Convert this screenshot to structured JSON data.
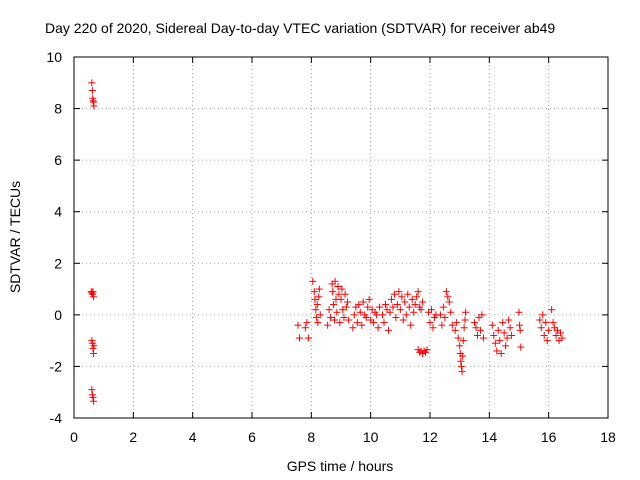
{
  "chart_data": {
    "type": "scatter",
    "title": "Day 220 of 2020, Sidereal Day-to-day VTEC variation (SDTVAR) for receiver ab49",
    "xlabel": "GPS time / hours",
    "ylabel": "SDTVAR / TECUs",
    "xlim": [
      0,
      18
    ],
    "ylim": [
      -4,
      10
    ],
    "xticks": [
      0,
      2,
      4,
      6,
      8,
      10,
      12,
      14,
      16,
      18
    ],
    "yticks": [
      -4,
      -2,
      0,
      2,
      4,
      6,
      8,
      10
    ],
    "xtick_labels": [
      "0",
      "2",
      "4",
      "6",
      "8",
      "10",
      "12",
      "14",
      "16",
      "18"
    ],
    "ytick_labels": [
      "-4",
      "-2",
      "0",
      "2",
      "4",
      "6",
      "8",
      "10"
    ],
    "grid": true,
    "marker": "+",
    "color": "#ff0000",
    "series": [
      {
        "name": "SDTVAR",
        "points": [
          [
            0.6,
            9.0
          ],
          [
            0.62,
            8.7
          ],
          [
            0.63,
            8.4
          ],
          [
            0.64,
            8.3
          ],
          [
            0.66,
            8.25
          ],
          [
            0.67,
            8.1
          ],
          [
            0.58,
            0.9
          ],
          [
            0.6,
            0.85
          ],
          [
            0.62,
            0.8
          ],
          [
            0.64,
            0.9
          ],
          [
            0.66,
            0.7
          ],
          [
            0.6,
            -1.0
          ],
          [
            0.62,
            -1.1
          ],
          [
            0.64,
            -1.3
          ],
          [
            0.66,
            -1.5
          ],
          [
            0.67,
            -1.2
          ],
          [
            0.6,
            -2.9
          ],
          [
            0.62,
            -3.1
          ],
          [
            0.64,
            -3.2
          ],
          [
            0.66,
            -3.35
          ],
          [
            7.55,
            -0.4
          ],
          [
            7.6,
            -0.9
          ],
          [
            7.8,
            -0.5
          ],
          [
            7.85,
            -0.3
          ],
          [
            7.9,
            -0.9
          ],
          [
            8.05,
            1.3
          ],
          [
            8.1,
            0.9
          ],
          [
            8.12,
            0.6
          ],
          [
            8.15,
            0.2
          ],
          [
            8.17,
            -0.1
          ],
          [
            8.2,
            0.4
          ],
          [
            8.22,
            -0.3
          ],
          [
            8.25,
            0.7
          ],
          [
            8.27,
            1.0
          ],
          [
            8.3,
            0.0
          ],
          [
            8.55,
            -0.4
          ],
          [
            8.6,
            0.2
          ],
          [
            8.65,
            -0.1
          ],
          [
            8.7,
            1.2
          ],
          [
            8.72,
            0.9
          ],
          [
            8.75,
            0.4
          ],
          [
            8.78,
            -0.2
          ],
          [
            8.8,
            1.3
          ],
          [
            8.83,
            0.6
          ],
          [
            8.86,
            0.1
          ],
          [
            8.9,
            1.1
          ],
          [
            8.93,
            0.8
          ],
          [
            8.96,
            -0.3
          ],
          [
            9.0,
            0.6
          ],
          [
            9.03,
            1.0
          ],
          [
            9.06,
            0.2
          ],
          [
            9.1,
            -0.1
          ],
          [
            9.14,
            0.8
          ],
          [
            9.18,
            0.3
          ],
          [
            9.22,
            0.5
          ],
          [
            9.26,
            -0.2
          ],
          [
            9.4,
            -0.5
          ],
          [
            9.45,
            0.0
          ],
          [
            9.5,
            0.3
          ],
          [
            9.55,
            -0.3
          ],
          [
            9.6,
            0.4
          ],
          [
            9.65,
            0.1
          ],
          [
            9.7,
            -0.4
          ],
          [
            9.75,
            0.5
          ],
          [
            9.8,
            0.0
          ],
          [
            9.85,
            -0.1
          ],
          [
            9.9,
            0.3
          ],
          [
            9.95,
            0.6
          ],
          [
            10.0,
            -0.2
          ],
          [
            10.05,
            0.2
          ],
          [
            10.1,
            -0.3
          ],
          [
            10.15,
            0.1
          ],
          [
            10.2,
            0.0
          ],
          [
            10.25,
            -0.5
          ],
          [
            10.3,
            0.3
          ],
          [
            10.4,
            0.0
          ],
          [
            10.45,
            -0.3
          ],
          [
            10.5,
            0.4
          ],
          [
            10.55,
            0.2
          ],
          [
            10.6,
            -0.6
          ],
          [
            10.65,
            0.1
          ],
          [
            10.7,
            0.6
          ],
          [
            10.75,
            0.3
          ],
          [
            10.8,
            0.8
          ],
          [
            10.85,
            -0.1
          ],
          [
            10.9,
            0.4
          ],
          [
            10.95,
            0.9
          ],
          [
            11.0,
            0.2
          ],
          [
            11.05,
            0.7
          ],
          [
            11.1,
            -0.2
          ],
          [
            11.15,
            0.5
          ],
          [
            11.2,
            0.0
          ],
          [
            11.25,
            0.8
          ],
          [
            11.3,
            0.3
          ],
          [
            11.35,
            -0.4
          ],
          [
            11.4,
            0.6
          ],
          [
            11.45,
            0.1
          ],
          [
            11.5,
            0.4
          ],
          [
            11.55,
            0.7
          ],
          [
            11.6,
            0.9
          ],
          [
            11.65,
            0.3
          ],
          [
            11.7,
            0.2
          ],
          [
            11.75,
            0.5
          ],
          [
            11.6,
            -1.35
          ],
          [
            11.65,
            -1.45
          ],
          [
            11.7,
            -1.4
          ],
          [
            11.75,
            -1.5
          ],
          [
            11.8,
            -1.4
          ],
          [
            11.85,
            -1.45
          ],
          [
            11.9,
            -1.35
          ],
          [
            11.95,
            0.1
          ],
          [
            12.0,
            -0.3
          ],
          [
            12.05,
            0.2
          ],
          [
            12.1,
            -0.5
          ],
          [
            12.15,
            -0.1
          ],
          [
            12.2,
            0.0
          ],
          [
            12.35,
            0.0
          ],
          [
            12.4,
            -0.4
          ],
          [
            12.45,
            0.3
          ],
          [
            12.5,
            -0.1
          ],
          [
            12.55,
            0.9
          ],
          [
            12.6,
            0.7
          ],
          [
            12.65,
            0.5
          ],
          [
            12.7,
            0.1
          ],
          [
            12.75,
            -0.4
          ],
          [
            12.85,
            -0.6
          ],
          [
            12.9,
            -0.3
          ],
          [
            12.95,
            -0.9
          ],
          [
            13.0,
            -1.2
          ],
          [
            13.02,
            -1.5
          ],
          [
            13.04,
            -1.8
          ],
          [
            13.06,
            -2.0
          ],
          [
            13.08,
            -2.2
          ],
          [
            13.1,
            -1.6
          ],
          [
            13.12,
            -1.0
          ],
          [
            13.15,
            -0.5
          ],
          [
            13.18,
            -0.2
          ],
          [
            13.2,
            0.1
          ],
          [
            13.5,
            -0.3
          ],
          [
            13.55,
            -0.5
          ],
          [
            13.6,
            -0.8
          ],
          [
            13.65,
            -0.1
          ],
          [
            13.7,
            -0.6
          ],
          [
            13.75,
            0.0
          ],
          [
            13.8,
            -0.9
          ],
          [
            14.1,
            -0.4
          ],
          [
            14.15,
            -0.8
          ],
          [
            14.2,
            -1.1
          ],
          [
            14.25,
            -1.4
          ],
          [
            14.3,
            -0.6
          ],
          [
            14.35,
            -1.0
          ],
          [
            14.4,
            -1.5
          ],
          [
            14.45,
            -0.3
          ],
          [
            14.5,
            -0.7
          ],
          [
            14.55,
            -1.2
          ],
          [
            14.6,
            -0.9
          ],
          [
            14.65,
            -0.2
          ],
          [
            14.7,
            -0.5
          ],
          [
            14.75,
            -0.8
          ],
          [
            15.0,
            0.1
          ],
          [
            15.02,
            -0.4
          ],
          [
            15.04,
            -0.6
          ],
          [
            15.06,
            -1.25
          ],
          [
            15.7,
            -0.2
          ],
          [
            15.75,
            -0.5
          ],
          [
            15.8,
            0.0
          ],
          [
            15.85,
            -0.8
          ],
          [
            15.9,
            -0.3
          ],
          [
            15.95,
            -1.0
          ],
          [
            16.0,
            -0.6
          ],
          [
            16.1,
            0.2
          ],
          [
            16.15,
            -0.3
          ],
          [
            16.2,
            -0.5
          ],
          [
            16.25,
            -0.8
          ],
          [
            16.3,
            -0.6
          ],
          [
            16.35,
            -1.0
          ],
          [
            16.4,
            -0.7
          ],
          [
            16.45,
            -0.9
          ]
        ]
      }
    ]
  }
}
